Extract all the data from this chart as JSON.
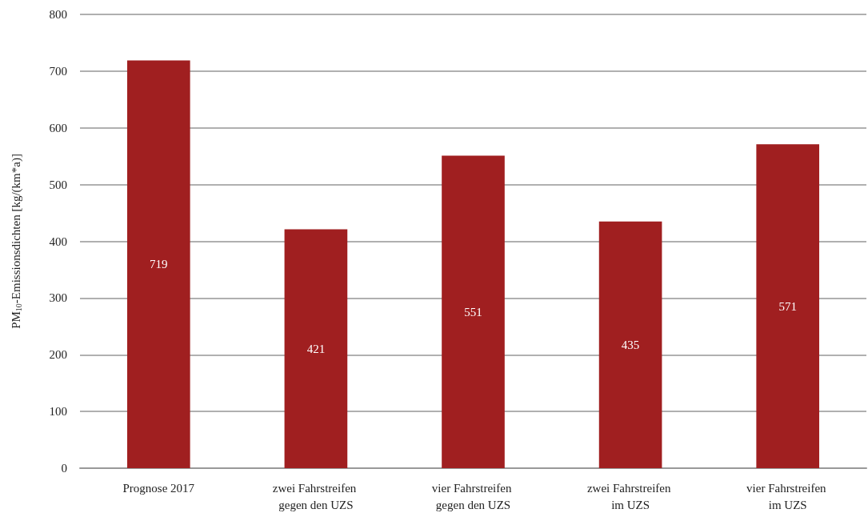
{
  "chart_data": {
    "type": "bar",
    "ylabel": "PM$_{10}$-Emissionsdichten [kg/(km*a)]",
    "categories": [
      "Prognose 2017",
      "zwei Fahrstreifen gegen den UZS",
      "vier Fahrstreifen gegen den UZS",
      "zwei Fahrstreifen im UZS",
      "vier Fahrstreifen im UZS"
    ],
    "values": [
      719,
      421,
      551,
      435,
      571
    ],
    "color": "#a01f20",
    "ylim": [
      0,
      800
    ],
    "yticks": [
      0,
      100,
      200,
      300,
      400,
      500,
      600,
      700,
      800
    ],
    "grid": true,
    "data_labels": true
  }
}
